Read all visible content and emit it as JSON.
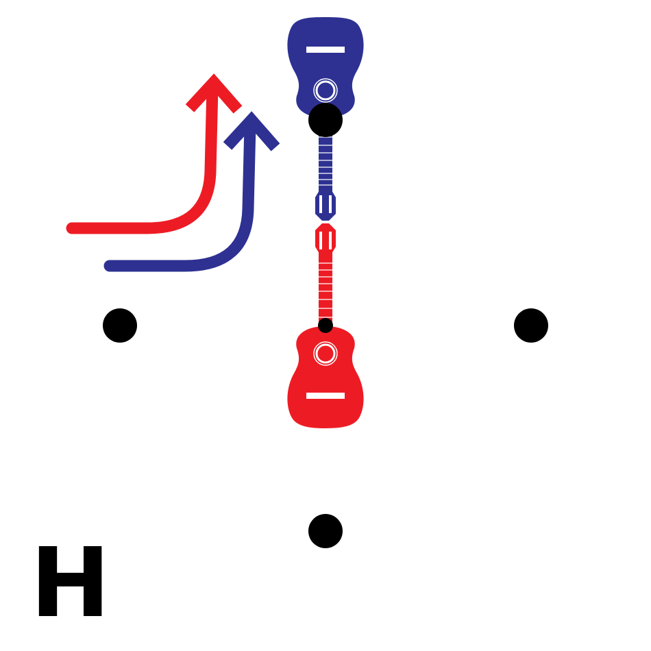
{
  "panel_label": "H",
  "colors": {
    "blue": "#2e3192",
    "red": "#ed1c24",
    "marker": "#000000",
    "background": "#ffffff"
  },
  "figure": {
    "markers": [
      "north",
      "west",
      "east",
      "south",
      "center"
    ],
    "guitars": [
      {
        "name": "blue-guitar",
        "color": "blue",
        "orientation": "body-up"
      },
      {
        "name": "red-guitar",
        "color": "red",
        "orientation": "body-down"
      }
    ],
    "arrows": [
      {
        "name": "red-turn-arrow",
        "color": "red",
        "direction": "right-then-up"
      },
      {
        "name": "blue-turn-arrow",
        "color": "blue",
        "direction": "right-then-up"
      }
    ]
  }
}
